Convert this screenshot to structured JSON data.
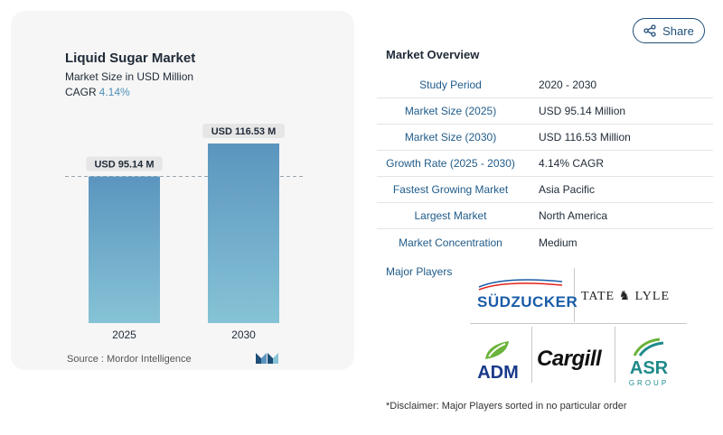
{
  "chart_card": {
    "title": "Liquid Sugar Market",
    "subtitle": "Market Size in USD Million",
    "cagr_label": "CAGR",
    "cagr_value": "4.14%",
    "source": "Source :  Mordor Intelligence"
  },
  "chart_data": {
    "type": "bar",
    "categories": [
      "2025",
      "2030"
    ],
    "values": [
      95.14,
      116.53
    ],
    "data_labels": [
      "USD 95.14 M",
      "USD 116.53 M"
    ],
    "title": "Liquid Sugar Market",
    "subtitle": "Market Size in USD Million",
    "xlabel": "",
    "ylabel": "",
    "ylim": [
      0,
      116.53
    ],
    "grid": false,
    "reference_line": 95.14,
    "colors": {
      "bar_top": "#5b95bf",
      "bar_bottom": "#86c3d6"
    }
  },
  "share": {
    "label": "Share",
    "icon": "share-icon"
  },
  "market_overview": {
    "title": "Market Overview",
    "rows": [
      {
        "label": "Study Period",
        "value": "2020 - 2030"
      },
      {
        "label": "Market Size (2025)",
        "value": "USD 95.14 Million"
      },
      {
        "label": "Market Size (2030)",
        "value": "USD 116.53 Million"
      },
      {
        "label": "Growth Rate (2025 - 2030)",
        "value": "4.14% CAGR"
      },
      {
        "label": "Fastest Growing Market",
        "value": "Asia Pacific"
      },
      {
        "label": "Largest Market",
        "value": "North America"
      },
      {
        "label": "Market Concentration",
        "value": "Medium"
      }
    ]
  },
  "major_players": {
    "title": "Major Players",
    "logos": {
      "sudzucker": "SÜDZUCKER",
      "tate_lyle": "TATE ♞ LYLE",
      "adm": "ADM",
      "cargill": "Cargill",
      "asr": "ASR",
      "asr_sub": "GROUP"
    }
  },
  "disclaimer": "*Disclaimer: Major Players sorted in no particular order",
  "colors": {
    "accent": "#1f5b8a",
    "cagr": "#4f8fb8",
    "card_bg": "#f6f6f6"
  }
}
